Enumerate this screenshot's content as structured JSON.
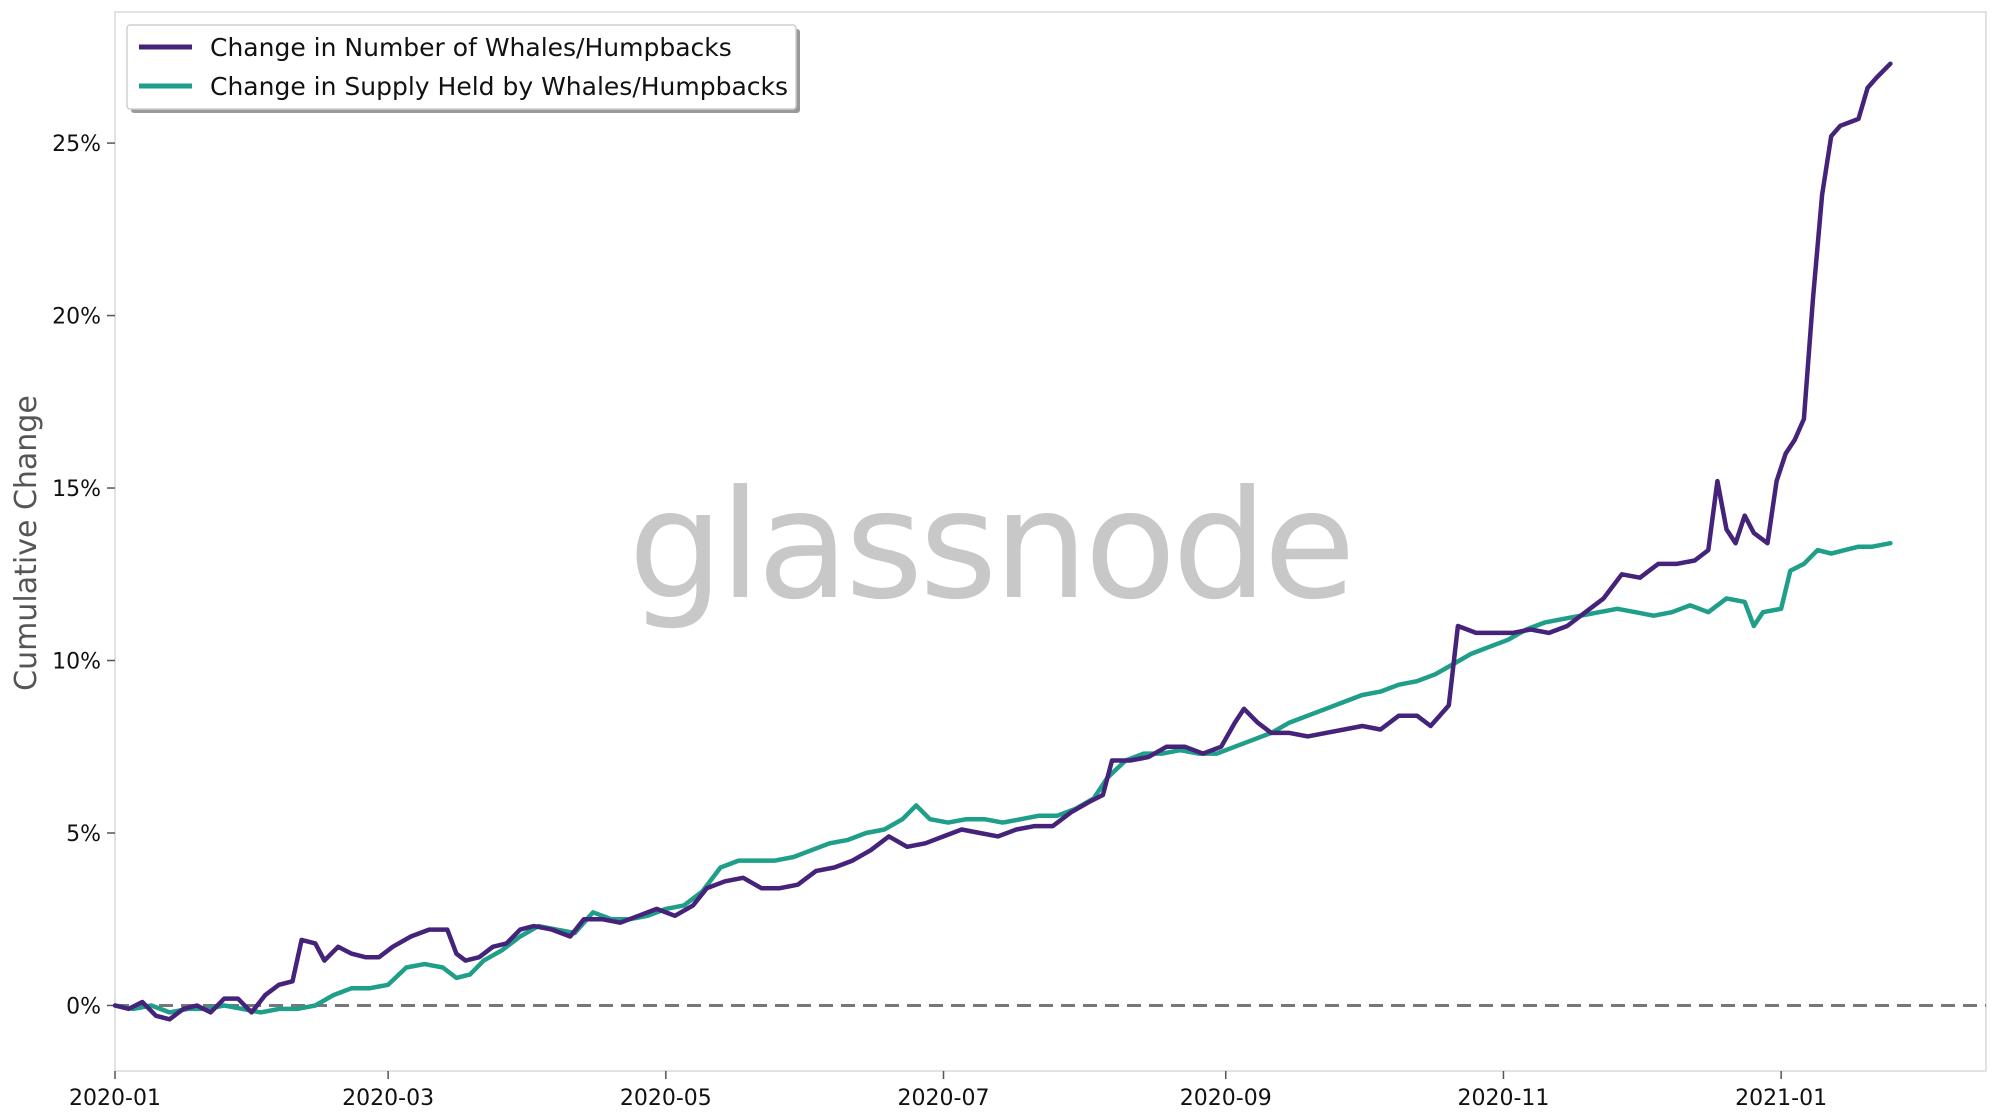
{
  "watermark": "glassnode",
  "chart_data": {
    "type": "line",
    "title": "",
    "xlabel": "",
    "ylabel": "Cumulative Change",
    "x_tick_labels": [
      "2020-01",
      "2020-03",
      "2020-05",
      "2020-07",
      "2020-09",
      "2020-11",
      "2021-01"
    ],
    "y_tick_labels": [
      "0%",
      "5%",
      "10%",
      "15%",
      "20%",
      "25%"
    ],
    "xlim": [
      "2020-01-01",
      "2021-02-15"
    ],
    "ylim": [
      -1.9,
      28.8
    ],
    "y_unit": "%",
    "grid": false,
    "legend_position": "top-left",
    "reference_line": {
      "y": 0,
      "style": "dashed",
      "color": "#777777"
    },
    "series": [
      {
        "name": "Change in Number of Whales/Humpbacks",
        "color": "#45237a",
        "points": [
          [
            "2020-01-01",
            0.0
          ],
          [
            "2020-01-04",
            -0.1
          ],
          [
            "2020-01-07",
            0.1
          ],
          [
            "2020-01-10",
            -0.3
          ],
          [
            "2020-01-13",
            -0.4
          ],
          [
            "2020-01-16",
            -0.1
          ],
          [
            "2020-01-19",
            0.0
          ],
          [
            "2020-01-22",
            -0.2
          ],
          [
            "2020-01-25",
            0.2
          ],
          [
            "2020-01-28",
            0.2
          ],
          [
            "2020-01-31",
            -0.2
          ],
          [
            "2020-02-03",
            0.3
          ],
          [
            "2020-02-06",
            0.6
          ],
          [
            "2020-02-09",
            0.7
          ],
          [
            "2020-02-11",
            1.9
          ],
          [
            "2020-02-14",
            1.8
          ],
          [
            "2020-02-16",
            1.3
          ],
          [
            "2020-02-19",
            1.7
          ],
          [
            "2020-02-22",
            1.5
          ],
          [
            "2020-02-25",
            1.4
          ],
          [
            "2020-02-28",
            1.4
          ],
          [
            "2020-03-02",
            1.7
          ],
          [
            "2020-03-06",
            2.0
          ],
          [
            "2020-03-10",
            2.2
          ],
          [
            "2020-03-14",
            2.2
          ],
          [
            "2020-03-16",
            1.5
          ],
          [
            "2020-03-18",
            1.3
          ],
          [
            "2020-03-21",
            1.4
          ],
          [
            "2020-03-24",
            1.7
          ],
          [
            "2020-03-27",
            1.8
          ],
          [
            "2020-03-30",
            2.2
          ],
          [
            "2020-04-02",
            2.3
          ],
          [
            "2020-04-06",
            2.2
          ],
          [
            "2020-04-10",
            2.0
          ],
          [
            "2020-04-13",
            2.5
          ],
          [
            "2020-04-17",
            2.5
          ],
          [
            "2020-04-21",
            2.4
          ],
          [
            "2020-04-25",
            2.6
          ],
          [
            "2020-04-29",
            2.8
          ],
          [
            "2020-05-03",
            2.6
          ],
          [
            "2020-05-07",
            2.9
          ],
          [
            "2020-05-10",
            3.4
          ],
          [
            "2020-05-14",
            3.6
          ],
          [
            "2020-05-18",
            3.7
          ],
          [
            "2020-05-22",
            3.4
          ],
          [
            "2020-05-26",
            3.4
          ],
          [
            "2020-05-30",
            3.5
          ],
          [
            "2020-06-03",
            3.9
          ],
          [
            "2020-06-07",
            4.0
          ],
          [
            "2020-06-11",
            4.2
          ],
          [
            "2020-06-15",
            4.5
          ],
          [
            "2020-06-19",
            4.9
          ],
          [
            "2020-06-23",
            4.6
          ],
          [
            "2020-06-27",
            4.7
          ],
          [
            "2020-07-01",
            4.9
          ],
          [
            "2020-07-05",
            5.1
          ],
          [
            "2020-07-09",
            5.0
          ],
          [
            "2020-07-13",
            4.9
          ],
          [
            "2020-07-17",
            5.1
          ],
          [
            "2020-07-21",
            5.2
          ],
          [
            "2020-07-25",
            5.2
          ],
          [
            "2020-07-29",
            5.6
          ],
          [
            "2020-08-02",
            5.9
          ],
          [
            "2020-08-05",
            6.1
          ],
          [
            "2020-08-07",
            7.1
          ],
          [
            "2020-08-11",
            7.1
          ],
          [
            "2020-08-15",
            7.2
          ],
          [
            "2020-08-19",
            7.5
          ],
          [
            "2020-08-23",
            7.5
          ],
          [
            "2020-08-27",
            7.3
          ],
          [
            "2020-08-31",
            7.5
          ],
          [
            "2020-09-03",
            8.2
          ],
          [
            "2020-09-05",
            8.6
          ],
          [
            "2020-09-08",
            8.2
          ],
          [
            "2020-09-11",
            7.9
          ],
          [
            "2020-09-15",
            7.9
          ],
          [
            "2020-09-19",
            7.8
          ],
          [
            "2020-09-23",
            7.9
          ],
          [
            "2020-09-27",
            8.0
          ],
          [
            "2020-10-01",
            8.1
          ],
          [
            "2020-10-05",
            8.0
          ],
          [
            "2020-10-09",
            8.4
          ],
          [
            "2020-10-13",
            8.4
          ],
          [
            "2020-10-16",
            8.1
          ],
          [
            "2020-10-18",
            8.4
          ],
          [
            "2020-10-20",
            8.7
          ],
          [
            "2020-10-22",
            11.0
          ],
          [
            "2020-10-26",
            10.8
          ],
          [
            "2020-10-30",
            10.8
          ],
          [
            "2020-11-03",
            10.8
          ],
          [
            "2020-11-07",
            10.9
          ],
          [
            "2020-11-11",
            10.8
          ],
          [
            "2020-11-15",
            11.0
          ],
          [
            "2020-11-19",
            11.4
          ],
          [
            "2020-11-23",
            11.8
          ],
          [
            "2020-11-27",
            12.5
          ],
          [
            "2020-12-01",
            12.4
          ],
          [
            "2020-12-05",
            12.8
          ],
          [
            "2020-12-09",
            12.8
          ],
          [
            "2020-12-13",
            12.9
          ],
          [
            "2020-12-16",
            13.2
          ],
          [
            "2020-12-18",
            15.2
          ],
          [
            "2020-12-20",
            13.8
          ],
          [
            "2020-12-22",
            13.4
          ],
          [
            "2020-12-24",
            14.2
          ],
          [
            "2020-12-26",
            13.7
          ],
          [
            "2020-12-29",
            13.4
          ],
          [
            "2020-12-31",
            15.2
          ],
          [
            "2021-01-02",
            16.0
          ],
          [
            "2021-01-04",
            16.4
          ],
          [
            "2021-01-06",
            17.0
          ],
          [
            "2021-01-08",
            20.5
          ],
          [
            "2021-01-10",
            23.5
          ],
          [
            "2021-01-12",
            25.2
          ],
          [
            "2021-01-14",
            25.5
          ],
          [
            "2021-01-16",
            25.6
          ],
          [
            "2021-01-18",
            25.7
          ],
          [
            "2021-01-20",
            26.6
          ],
          [
            "2021-01-22",
            26.9
          ],
          [
            "2021-01-25",
            27.3
          ]
        ]
      },
      {
        "name": "Change in Supply Held by Whales/Humpbacks",
        "color": "#1f9e89",
        "points": [
          [
            "2020-01-01",
            0.0
          ],
          [
            "2020-01-05",
            -0.1
          ],
          [
            "2020-01-09",
            0.0
          ],
          [
            "2020-01-13",
            -0.2
          ],
          [
            "2020-01-17",
            -0.1
          ],
          [
            "2020-01-21",
            -0.1
          ],
          [
            "2020-01-25",
            0.0
          ],
          [
            "2020-01-29",
            -0.1
          ],
          [
            "2020-02-02",
            -0.2
          ],
          [
            "2020-02-06",
            -0.1
          ],
          [
            "2020-02-10",
            -0.1
          ],
          [
            "2020-02-14",
            0.0
          ],
          [
            "2020-02-18",
            0.3
          ],
          [
            "2020-02-22",
            0.5
          ],
          [
            "2020-02-26",
            0.5
          ],
          [
            "2020-03-01",
            0.6
          ],
          [
            "2020-03-05",
            1.1
          ],
          [
            "2020-03-09",
            1.2
          ],
          [
            "2020-03-13",
            1.1
          ],
          [
            "2020-03-16",
            0.8
          ],
          [
            "2020-03-19",
            0.9
          ],
          [
            "2020-03-22",
            1.3
          ],
          [
            "2020-03-26",
            1.6
          ],
          [
            "2020-03-30",
            2.0
          ],
          [
            "2020-04-03",
            2.3
          ],
          [
            "2020-04-07",
            2.2
          ],
          [
            "2020-04-11",
            2.1
          ],
          [
            "2020-04-15",
            2.7
          ],
          [
            "2020-04-19",
            2.5
          ],
          [
            "2020-04-23",
            2.5
          ],
          [
            "2020-04-27",
            2.6
          ],
          [
            "2020-05-01",
            2.8
          ],
          [
            "2020-05-05",
            2.9
          ],
          [
            "2020-05-09",
            3.3
          ],
          [
            "2020-05-13",
            4.0
          ],
          [
            "2020-05-17",
            4.2
          ],
          [
            "2020-05-21",
            4.2
          ],
          [
            "2020-05-25",
            4.2
          ],
          [
            "2020-05-29",
            4.3
          ],
          [
            "2020-06-02",
            4.5
          ],
          [
            "2020-06-06",
            4.7
          ],
          [
            "2020-06-10",
            4.8
          ],
          [
            "2020-06-14",
            5.0
          ],
          [
            "2020-06-18",
            5.1
          ],
          [
            "2020-06-22",
            5.4
          ],
          [
            "2020-06-25",
            5.8
          ],
          [
            "2020-06-28",
            5.4
          ],
          [
            "2020-07-02",
            5.3
          ],
          [
            "2020-07-06",
            5.4
          ],
          [
            "2020-07-10",
            5.4
          ],
          [
            "2020-07-14",
            5.3
          ],
          [
            "2020-07-18",
            5.4
          ],
          [
            "2020-07-22",
            5.5
          ],
          [
            "2020-07-26",
            5.5
          ],
          [
            "2020-07-30",
            5.7
          ],
          [
            "2020-08-03",
            6.0
          ],
          [
            "2020-08-06",
            6.6
          ],
          [
            "2020-08-10",
            7.1
          ],
          [
            "2020-08-14",
            7.3
          ],
          [
            "2020-08-18",
            7.3
          ],
          [
            "2020-08-22",
            7.4
          ],
          [
            "2020-08-26",
            7.3
          ],
          [
            "2020-08-30",
            7.3
          ],
          [
            "2020-09-03",
            7.5
          ],
          [
            "2020-09-07",
            7.7
          ],
          [
            "2020-09-11",
            7.9
          ],
          [
            "2020-09-15",
            8.2
          ],
          [
            "2020-09-19",
            8.4
          ],
          [
            "2020-09-23",
            8.6
          ],
          [
            "2020-09-27",
            8.8
          ],
          [
            "2020-10-01",
            9.0
          ],
          [
            "2020-10-05",
            9.1
          ],
          [
            "2020-10-09",
            9.3
          ],
          [
            "2020-10-13",
            9.4
          ],
          [
            "2020-10-17",
            9.6
          ],
          [
            "2020-10-21",
            9.9
          ],
          [
            "2020-10-25",
            10.2
          ],
          [
            "2020-10-29",
            10.4
          ],
          [
            "2020-11-02",
            10.6
          ],
          [
            "2020-11-06",
            10.9
          ],
          [
            "2020-11-10",
            11.1
          ],
          [
            "2020-11-14",
            11.2
          ],
          [
            "2020-11-18",
            11.3
          ],
          [
            "2020-11-22",
            11.4
          ],
          [
            "2020-11-26",
            11.5
          ],
          [
            "2020-11-30",
            11.4
          ],
          [
            "2020-12-04",
            11.3
          ],
          [
            "2020-12-08",
            11.4
          ],
          [
            "2020-12-12",
            11.6
          ],
          [
            "2020-12-16",
            11.4
          ],
          [
            "2020-12-20",
            11.8
          ],
          [
            "2020-12-24",
            11.7
          ],
          [
            "2020-12-26",
            11.0
          ],
          [
            "2020-12-28",
            11.4
          ],
          [
            "2021-01-01",
            11.5
          ],
          [
            "2021-01-03",
            12.6
          ],
          [
            "2021-01-06",
            12.8
          ],
          [
            "2021-01-09",
            13.2
          ],
          [
            "2021-01-12",
            13.1
          ],
          [
            "2021-01-15",
            13.2
          ],
          [
            "2021-01-18",
            13.3
          ],
          [
            "2021-01-21",
            13.3
          ],
          [
            "2021-01-25",
            13.4
          ]
        ]
      }
    ]
  }
}
